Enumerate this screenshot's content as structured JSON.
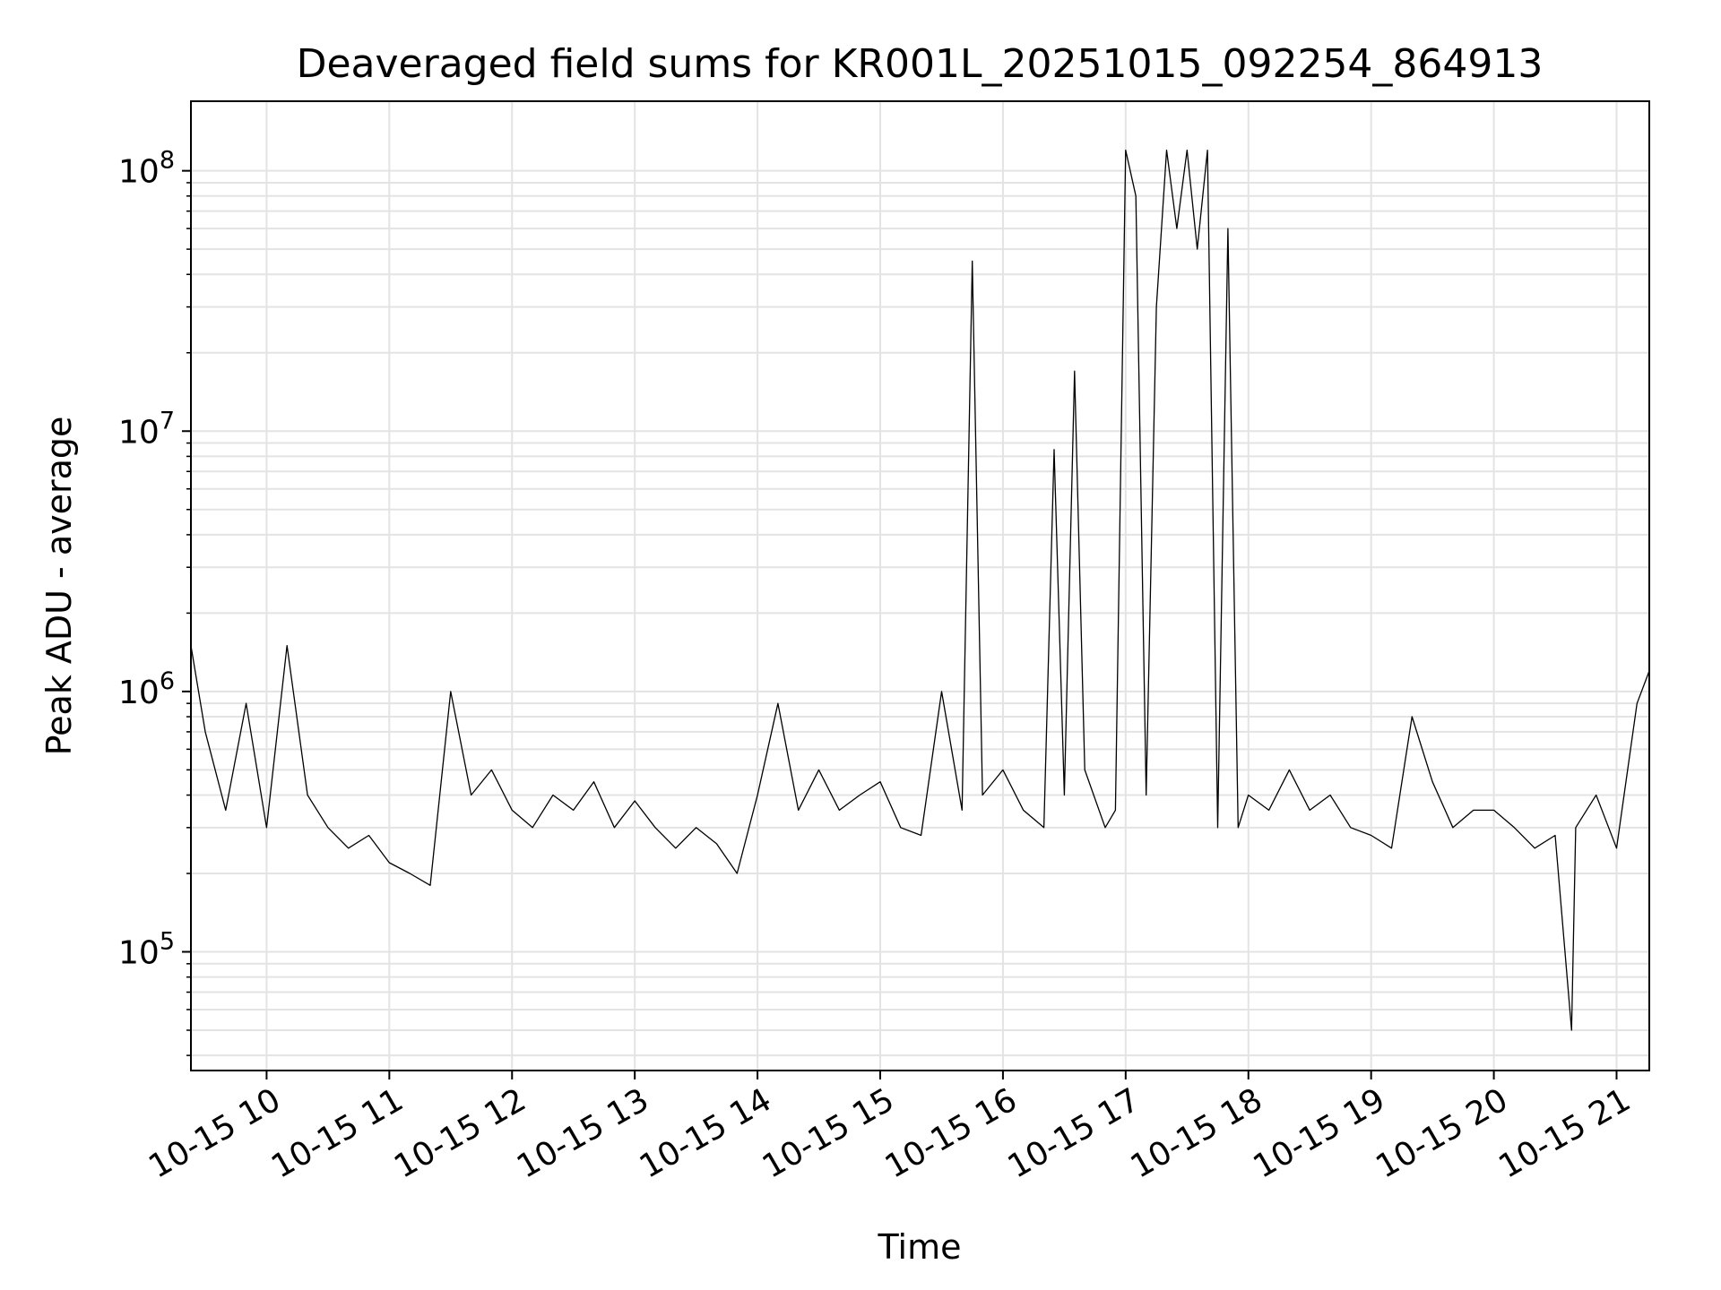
{
  "chart_data": {
    "type": "line",
    "title": "Deaveraged field sums for KR001L_20251015_092254_864913",
    "xlabel": "Time",
    "ylabel": "Peak ADU - average",
    "yscale": "log",
    "ylim": [
      35000,
      185000000
    ],
    "xlim": [
      "2025-10-15 09:23",
      "2025-10-15 21:16"
    ],
    "grid": true,
    "line_color": "#000000",
    "x_ticks": [
      "10-15 10",
      "10-15 11",
      "10-15 12",
      "10-15 13",
      "10-15 14",
      "10-15 15",
      "10-15 16",
      "10-15 17",
      "10-15 18",
      "10-15 19",
      "10-15 20",
      "10-15 21"
    ],
    "x_tick_times": [
      "2025-10-15 10:00",
      "2025-10-15 11:00",
      "2025-10-15 12:00",
      "2025-10-15 13:00",
      "2025-10-15 14:00",
      "2025-10-15 15:00",
      "2025-10-15 16:00",
      "2025-10-15 17:00",
      "2025-10-15 18:00",
      "2025-10-15 19:00",
      "2025-10-15 20:00",
      "2025-10-15 21:00"
    ],
    "y_ticks": [
      {
        "base": "10",
        "exp": "5",
        "value": 100000
      },
      {
        "base": "10",
        "exp": "6",
        "value": 1000000
      },
      {
        "base": "10",
        "exp": "7",
        "value": 10000000
      },
      {
        "base": "10",
        "exp": "8",
        "value": 100000000
      }
    ],
    "series": [
      {
        "x": [
          "2025-10-15 09:23",
          "2025-10-15 09:30",
          "2025-10-15 09:40",
          "2025-10-15 09:50",
          "2025-10-15 10:00",
          "2025-10-15 10:10",
          "2025-10-15 10:20",
          "2025-10-15 10:30",
          "2025-10-15 10:40",
          "2025-10-15 10:50",
          "2025-10-15 11:00",
          "2025-10-15 11:10",
          "2025-10-15 11:20",
          "2025-10-15 11:30",
          "2025-10-15 11:40",
          "2025-10-15 11:50",
          "2025-10-15 12:00",
          "2025-10-15 12:10",
          "2025-10-15 12:20",
          "2025-10-15 12:30",
          "2025-10-15 12:40",
          "2025-10-15 12:50",
          "2025-10-15 13:00",
          "2025-10-15 13:10",
          "2025-10-15 13:20",
          "2025-10-15 13:30",
          "2025-10-15 13:40",
          "2025-10-15 13:50",
          "2025-10-15 14:00",
          "2025-10-15 14:10",
          "2025-10-15 14:20",
          "2025-10-15 14:30",
          "2025-10-15 14:40",
          "2025-10-15 14:50",
          "2025-10-15 15:00",
          "2025-10-15 15:10",
          "2025-10-15 15:20",
          "2025-10-15 15:30",
          "2025-10-15 15:40",
          "2025-10-15 15:45",
          "2025-10-15 15:50",
          "2025-10-15 16:00",
          "2025-10-15 16:10",
          "2025-10-15 16:20",
          "2025-10-15 16:25",
          "2025-10-15 16:30",
          "2025-10-15 16:35",
          "2025-10-15 16:40",
          "2025-10-15 16:50",
          "2025-10-15 16:55",
          "2025-10-15 17:00",
          "2025-10-15 17:05",
          "2025-10-15 17:10",
          "2025-10-15 17:15",
          "2025-10-15 17:20",
          "2025-10-15 17:25",
          "2025-10-15 17:30",
          "2025-10-15 17:35",
          "2025-10-15 17:40",
          "2025-10-15 17:45",
          "2025-10-15 17:50",
          "2025-10-15 17:55",
          "2025-10-15 18:00",
          "2025-10-15 18:10",
          "2025-10-15 18:20",
          "2025-10-15 18:30",
          "2025-10-15 18:40",
          "2025-10-15 18:50",
          "2025-10-15 19:00",
          "2025-10-15 19:10",
          "2025-10-15 19:20",
          "2025-10-15 19:30",
          "2025-10-15 19:40",
          "2025-10-15 19:50",
          "2025-10-15 20:00",
          "2025-10-15 20:10",
          "2025-10-15 20:20",
          "2025-10-15 20:30",
          "2025-10-15 20:38",
          "2025-10-15 20:40",
          "2025-10-15 20:50",
          "2025-10-15 21:00",
          "2025-10-15 21:10",
          "2025-10-15 21:16"
        ],
        "y": [
          1500000,
          700000,
          350000,
          900000,
          300000,
          1500000,
          400000,
          300000,
          250000,
          280000,
          220000,
          200000,
          180000,
          1000000,
          400000,
          500000,
          350000,
          300000,
          400000,
          350000,
          450000,
          300000,
          380000,
          300000,
          250000,
          300000,
          260000,
          200000,
          400000,
          900000,
          350000,
          500000,
          350000,
          400000,
          450000,
          300000,
          280000,
          1000000,
          350000,
          45000000,
          400000,
          500000,
          350000,
          300000,
          8500000,
          400000,
          17000000,
          500000,
          300000,
          350000,
          120000000,
          80000000,
          400000,
          30000000,
          120000000,
          60000000,
          120000000,
          50000000,
          120000000,
          300000,
          60000000,
          300000,
          400000,
          350000,
          500000,
          350000,
          400000,
          300000,
          280000,
          250000,
          800000,
          450000,
          300000,
          350000,
          350000,
          300000,
          250000,
          280000,
          50000,
          300000,
          400000,
          250000,
          900000,
          1200000
        ]
      }
    ]
  }
}
